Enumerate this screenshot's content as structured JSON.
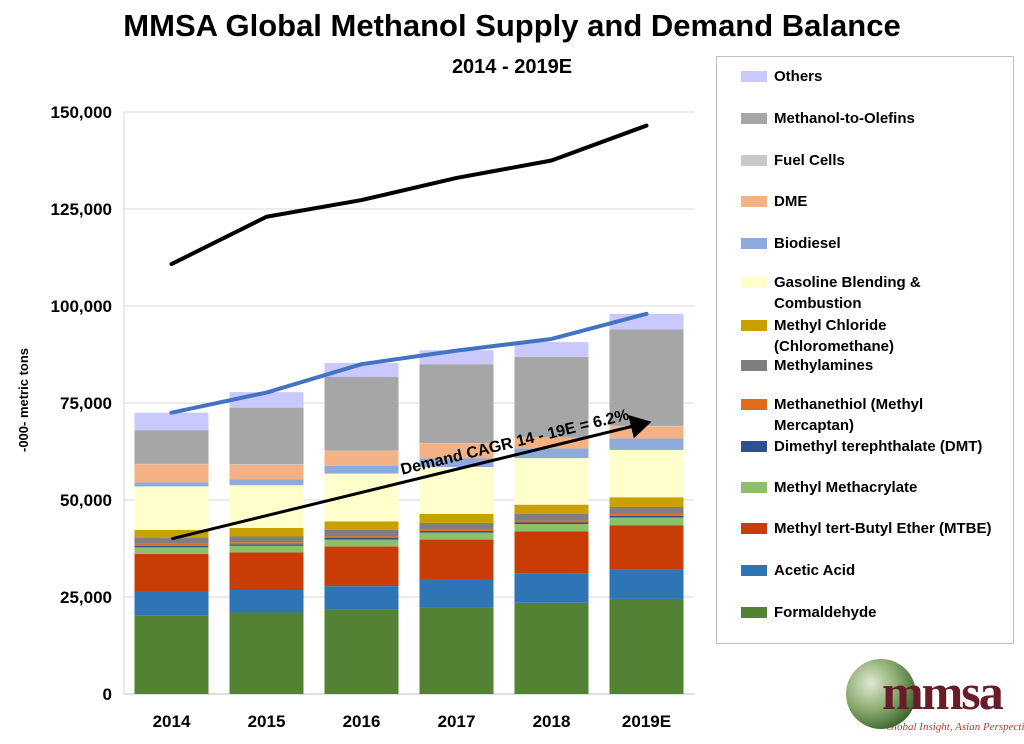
{
  "chart_data": {
    "type": "bar",
    "title": "MMSA Global Methanol Supply and Demand Balance",
    "subtitle": "2014 - 2019E",
    "ylabel": "-000- metric tons",
    "xlabel": "",
    "ylim": [
      0,
      150000
    ],
    "yticks": [
      "0",
      "25,000",
      "50,000",
      "75,000",
      "100,000",
      "125,000",
      "150,000"
    ],
    "ytick_values": [
      0,
      25000,
      50000,
      75000,
      100000,
      125000,
      150000
    ],
    "grid": true,
    "legend_position": "right",
    "categories": [
      "2014",
      "2015",
      "2016",
      "2017",
      "2018",
      "2019E"
    ],
    "stacked_series": [
      {
        "name": "Formaldehyde",
        "color": "#548235",
        "values": [
          20300,
          21000,
          21800,
          22400,
          23500,
          24500
        ]
      },
      {
        "name": "Acetic Acid",
        "color": "#2e75b6",
        "values": [
          6000,
          5800,
          6000,
          7000,
          7500,
          7500
        ]
      },
      {
        "name": "Methyl tert-Butyl Ether (MTBE)",
        "color": "#c93c06",
        "values": [
          9800,
          9700,
          10200,
          10400,
          10900,
          11500
        ]
      },
      {
        "name": "Methyl Methacrylate",
        "color": "#8dc06a",
        "values": [
          1700,
          1700,
          1800,
          1800,
          1900,
          2000
        ]
      },
      {
        "name": "Dimethyl terephthalate (DMT)",
        "color": "#2f4f8f",
        "values": [
          400,
          400,
          400,
          400,
          400,
          400
        ]
      },
      {
        "name": "Methanethiol (Methyl Mercaptan)",
        "color": "#e06c1a",
        "values": [
          500,
          500,
          500,
          500,
          500,
          500
        ]
      },
      {
        "name": "Methylamines",
        "color": "#7f7f7f",
        "values": [
          1500,
          1500,
          1600,
          1600,
          1700,
          1800
        ]
      },
      {
        "name": "Methyl Chloride (Chloromethane)",
        "color": "#c9a000",
        "values": [
          2100,
          2200,
          2200,
          2300,
          2400,
          2500
        ]
      },
      {
        "name": "Gasoline Blending & Combustion",
        "color": "#ffffcc",
        "values": [
          11200,
          11000,
          12300,
          12100,
          12000,
          12200
        ]
      },
      {
        "name": "Biodiesel",
        "color": "#8eaadb",
        "values": [
          1000,
          1500,
          2000,
          2200,
          2500,
          3000
        ]
      },
      {
        "name": "DME",
        "color": "#f4b183",
        "values": [
          4700,
          3800,
          3800,
          3900,
          2700,
          3100
        ]
      },
      {
        "name": "Fuel Cells",
        "color": "#c9c9c9",
        "values": [
          100,
          100,
          100,
          100,
          100,
          100
        ]
      },
      {
        "name": "Methanol-to-Olefins",
        "color": "#a6a6a6",
        "values": [
          8700,
          14600,
          19000,
          20300,
          20800,
          24900
        ]
      },
      {
        "name": "Others",
        "color": "#c9c9ff",
        "values": [
          4500,
          4000,
          3600,
          3600,
          3800,
          4000
        ]
      }
    ],
    "line_series": [
      {
        "name": "",
        "color": "#000000",
        "values": [
          110800,
          123000,
          127300,
          133000,
          137500,
          146500
        ]
      },
      {
        "name": "",
        "color": "#4472c4",
        "values": [
          72500,
          77700,
          85000,
          88500,
          91500,
          98000
        ]
      }
    ],
    "annotation": {
      "text": "Demand CAGR 14 - 19E = 6.2%",
      "arrow_from": [
        "2014",
        40000
      ],
      "arrow_to": [
        "2019E",
        70000
      ]
    }
  },
  "legend_order": [
    "Others",
    "Methanol-to-Olefins",
    "Fuel Cells",
    "DME",
    "Biodiesel",
    "Gasoline Blending &\nCombustion",
    "Methyl Chloride\n(Chloromethane)",
    "Methylamines",
    "Methanethiol (Methyl\nMercaptan)",
    "Dimethyl terephthalate (DMT)",
    "Methyl Methacrylate",
    "Methyl tert-Butyl Ether (MTBE)",
    "Acetic Acid",
    "Formaldehyde"
  ],
  "logo": {
    "text": "mmsa",
    "tagline": "Global Insight, Asian Perspective™"
  }
}
